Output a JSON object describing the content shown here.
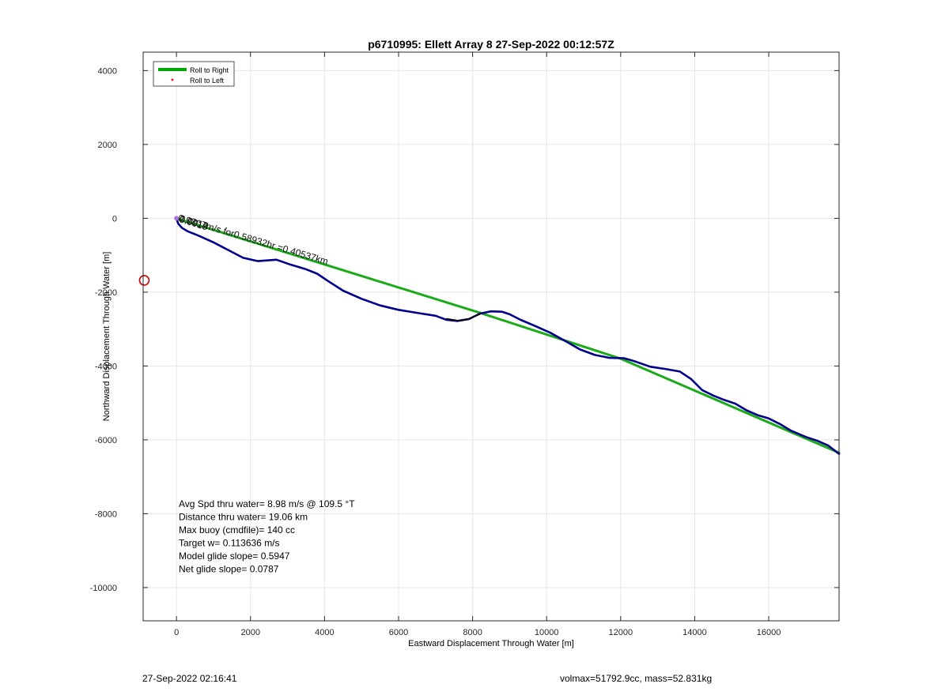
{
  "chart_data": {
    "type": "line",
    "title": "p6710995: Ellett Array 8 27-Sep-2022 00:12:57Z",
    "xlabel": "Eastward Displacement Through Water [m]",
    "ylabel": "Northward Displacement Through Water [m]",
    "xlim": [
      -900,
      17900
    ],
    "ylim": [
      -10900,
      4500
    ],
    "xticks": [
      0,
      2000,
      4000,
      6000,
      8000,
      10000,
      12000,
      14000,
      16000
    ],
    "yticks": [
      4000,
      2000,
      0,
      -2000,
      -4000,
      -6000,
      -8000,
      -10000
    ],
    "grid": true,
    "legend_position": "top-left",
    "legend": [
      {
        "label": "Roll to Right",
        "color": "#00aa00",
        "style": "line"
      },
      {
        "label": "Roll to Left",
        "color": "#ff0000",
        "style": "dot"
      }
    ],
    "series": [
      {
        "name": "Roll to Right",
        "color": "#1aaa1a",
        "x": [
          0,
          8200,
          12000,
          17900
        ],
        "y": [
          0,
          -2560,
          -3800,
          -6350
        ]
      },
      {
        "color": "#00008b",
        "x": [
          0,
          50,
          150,
          300,
          600,
          1000,
          1400,
          1800,
          2200,
          2700,
          3100,
          3500,
          3800,
          4100,
          4500,
          5000,
          5500,
          6000,
          6500,
          7000,
          7300,
          7600,
          7900,
          8200,
          8500,
          8800,
          9000,
          9300,
          9700,
          10100,
          10500,
          10900,
          11300,
          11700,
          12100,
          12400,
          12800,
          13200,
          13600,
          13900,
          14200,
          14500,
          14800,
          15100,
          15400,
          15700,
          16000,
          16300,
          16600,
          17000,
          17300,
          17600,
          17900
        ],
        "y": [
          0,
          -150,
          -260,
          -350,
          -470,
          -650,
          -860,
          -1070,
          -1160,
          -1120,
          -1260,
          -1380,
          -1500,
          -1700,
          -1960,
          -2180,
          -2360,
          -2480,
          -2560,
          -2640,
          -2750,
          -2780,
          -2730,
          -2580,
          -2520,
          -2530,
          -2600,
          -2750,
          -2920,
          -3100,
          -3320,
          -3550,
          -3700,
          -3780,
          -3790,
          -3880,
          -4020,
          -4080,
          -4150,
          -4350,
          -4650,
          -4800,
          -4920,
          -5020,
          -5200,
          -5330,
          -5420,
          -5570,
          -5750,
          -5920,
          -6020,
          -6150,
          -6380
        ]
      },
      {
        "color": "#000000",
        "x": [
          7300,
          7600,
          7900,
          8200
        ],
        "y": [
          -2720,
          -2770,
          -2720,
          -2590
        ]
      }
    ],
    "annotations": [
      {
        "text": "0.9307m/s for0.58932hr =0.40537km",
        "x": 30,
        "y": -60,
        "rotation": 16.5
      },
      {
        "text": "0.0017",
        "x": 70,
        "y": -80,
        "rotation": 16.5
      },
      {
        "text": "0.0018",
        "x": 60,
        "y": -100,
        "rotation": 16.5
      }
    ],
    "marker": {
      "x": -870,
      "y": -1680,
      "color": "#cc0000"
    },
    "stats_lines": [
      "Avg Spd thru water=  8.98 m/s @ 109.5 °T",
      "Distance thru water= 19.06 km",
      "Max buoy (cmdfile)= 140 cc",
      "Target w= 0.113636 m/s",
      "Model glide slope= 0.5947",
      "Net glide slope= 0.0787"
    ]
  },
  "footer": {
    "left": "27-Sep-2022 02:16:41",
    "right": "volmax=51792.9cc, mass=52.831kg"
  }
}
